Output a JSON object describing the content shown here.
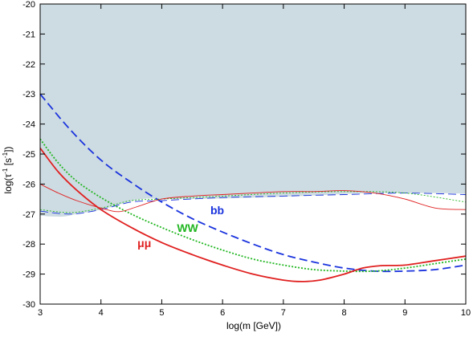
{
  "chart_data": {
    "type": "line",
    "title": "",
    "xlabel": "log(m [GeV])",
    "ylabel_parts": {
      "base": "log(τ",
      "sup1": "-1",
      "mid": " [s",
      "sup2": "-1",
      "end": "])"
    },
    "xlim": [
      3,
      10
    ],
    "ylim": [
      -30,
      -20
    ],
    "x_ticks": [
      3,
      4,
      5,
      6,
      7,
      8,
      9,
      10
    ],
    "y_ticks": [
      -20,
      -21,
      -22,
      -23,
      -24,
      -25,
      -26,
      -27,
      -28,
      -29,
      -30
    ],
    "grid": false,
    "excluded_region": {
      "color": "#cddbe2",
      "boundary": [
        [
          3.0,
          -27.05
        ],
        [
          3.2,
          -27.08
        ],
        [
          3.4,
          -27.08
        ],
        [
          3.6,
          -27.0
        ],
        [
          3.8,
          -26.93
        ],
        [
          4.0,
          -26.85
        ],
        [
          4.2,
          -26.75
        ],
        [
          4.4,
          -26.62
        ],
        [
          4.6,
          -26.52
        ],
        [
          4.8,
          -26.48
        ],
        [
          5.0,
          -26.5
        ],
        [
          5.5,
          -26.5
        ],
        [
          6.0,
          -26.48
        ],
        [
          6.5,
          -26.45
        ],
        [
          7.0,
          -26.42
        ],
        [
          7.5,
          -26.38
        ],
        [
          8.0,
          -26.33
        ],
        [
          8.5,
          -26.3
        ],
        [
          9.0,
          -26.3
        ],
        [
          9.5,
          -26.3
        ],
        [
          10.0,
          -26.32
        ]
      ]
    },
    "series": [
      {
        "name": "bb",
        "color": "#1a33dd",
        "style": "dashed",
        "points": [
          [
            3.0,
            -23.0
          ],
          [
            3.5,
            -24.2
          ],
          [
            4.0,
            -25.2
          ],
          [
            4.5,
            -25.95
          ],
          [
            5.0,
            -26.6
          ],
          [
            5.5,
            -27.15
          ],
          [
            6.0,
            -27.6
          ],
          [
            6.5,
            -28.0
          ],
          [
            7.0,
            -28.35
          ],
          [
            7.5,
            -28.6
          ],
          [
            8.0,
            -28.8
          ],
          [
            8.5,
            -28.9
          ],
          [
            9.0,
            -28.9
          ],
          [
            9.5,
            -28.85
          ],
          [
            10.0,
            -28.7
          ]
        ],
        "thin_points": [
          [
            3.0,
            -26.9
          ],
          [
            3.5,
            -27.0
          ],
          [
            4.0,
            -26.85
          ],
          [
            4.5,
            -26.6
          ],
          [
            5.0,
            -26.55
          ],
          [
            6.0,
            -26.45
          ],
          [
            7.0,
            -26.4
          ],
          [
            8.0,
            -26.35
          ],
          [
            9.0,
            -26.3
          ],
          [
            10.0,
            -26.35
          ]
        ]
      },
      {
        "name": "WW",
        "color": "#22b722",
        "style": "dotted",
        "points": [
          [
            3.0,
            -24.5
          ],
          [
            3.3,
            -25.3
          ],
          [
            3.6,
            -25.9
          ],
          [
            4.0,
            -26.45
          ],
          [
            4.5,
            -27.0
          ],
          [
            5.0,
            -27.45
          ],
          [
            5.5,
            -27.85
          ],
          [
            6.0,
            -28.2
          ],
          [
            6.5,
            -28.5
          ],
          [
            7.0,
            -28.7
          ],
          [
            7.5,
            -28.85
          ],
          [
            8.0,
            -28.9
          ],
          [
            8.5,
            -28.9
          ],
          [
            9.0,
            -28.8
          ],
          [
            9.5,
            -28.65
          ],
          [
            10.0,
            -28.5
          ]
        ],
        "thin_points": [
          [
            3.0,
            -26.85
          ],
          [
            3.5,
            -26.95
          ],
          [
            4.0,
            -26.8
          ],
          [
            4.5,
            -26.55
          ],
          [
            5.0,
            -26.5
          ],
          [
            6.0,
            -26.4
          ],
          [
            7.0,
            -26.3
          ],
          [
            8.0,
            -26.25
          ],
          [
            9.0,
            -26.3
          ],
          [
            10.0,
            -26.6
          ]
        ]
      },
      {
        "name": "μμ",
        "color": "#e01f1f",
        "style": "solid",
        "points": [
          [
            3.0,
            -24.8
          ],
          [
            3.3,
            -25.6
          ],
          [
            3.6,
            -26.2
          ],
          [
            4.0,
            -26.85
          ],
          [
            4.5,
            -27.45
          ],
          [
            5.0,
            -27.95
          ],
          [
            5.5,
            -28.35
          ],
          [
            6.0,
            -28.7
          ],
          [
            6.5,
            -29.0
          ],
          [
            7.0,
            -29.2
          ],
          [
            7.3,
            -29.25
          ],
          [
            7.6,
            -29.2
          ],
          [
            8.0,
            -29.0
          ],
          [
            8.3,
            -28.8
          ],
          [
            8.6,
            -28.72
          ],
          [
            9.0,
            -28.7
          ],
          [
            9.5,
            -28.55
          ],
          [
            10.0,
            -28.4
          ]
        ],
        "thin_points": [
          [
            3.0,
            -26.0
          ],
          [
            3.3,
            -26.3
          ],
          [
            3.6,
            -26.55
          ],
          [
            4.0,
            -26.8
          ],
          [
            4.3,
            -26.92
          ],
          [
            4.6,
            -26.75
          ],
          [
            5.0,
            -26.5
          ],
          [
            5.5,
            -26.4
          ],
          [
            6.0,
            -26.35
          ],
          [
            6.5,
            -26.3
          ],
          [
            7.0,
            -26.25
          ],
          [
            7.5,
            -26.25
          ],
          [
            8.0,
            -26.22
          ],
          [
            8.5,
            -26.3
          ],
          [
            9.0,
            -26.5
          ],
          [
            9.5,
            -26.8
          ],
          [
            10.0,
            -26.85
          ]
        ]
      }
    ],
    "labels": [
      {
        "text": "bb",
        "color": "#1a33dd",
        "at": [
          5.8,
          -27.0
        ]
      },
      {
        "text": "WW",
        "color": "#22b722",
        "at": [
          5.25,
          -27.6
        ]
      },
      {
        "text": "μμ",
        "color": "#e01f1f",
        "at": [
          4.6,
          -28.1
        ]
      }
    ]
  }
}
